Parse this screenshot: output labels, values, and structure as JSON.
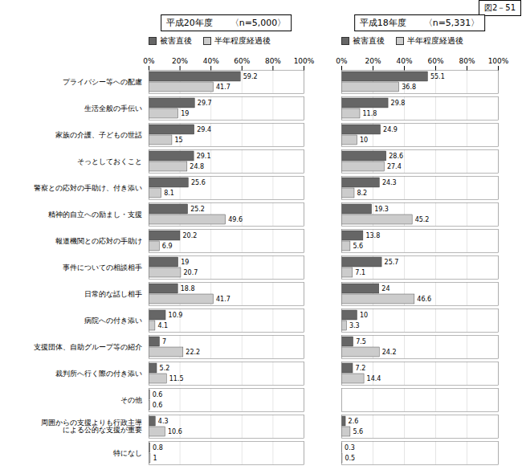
{
  "chart_data": [
    {
      "type": "bar",
      "orientation": "horizontal",
      "title": "平成20年度　　〈n=5,000〉",
      "annotations": [
        "図2－51"
      ],
      "categories": [
        "プライバシー等への配慮",
        "生活全般の手伝い",
        "家族の介護、子どもの世話",
        "そっとしておくこと",
        "警察との応対の手助け、付き添い",
        "精神的自立への励まし・支援",
        "報道機関との応対の手助け",
        "事件についての相談相手",
        "日常的な話し相手",
        "病院への付き添い",
        "支援団体、自助グループ等の紹介",
        "裁判所へ行く際の付き添い",
        "その他",
        "周囲からの支援よりも行政主導\nによる公的な支援が重要",
        "特になし"
      ],
      "series": [
        {
          "name": "被害直後",
          "color": "#666666",
          "values": [
            59.2,
            29.7,
            29.4,
            29.1,
            25.6,
            25.2,
            20.2,
            19.0,
            18.8,
            10.9,
            7.0,
            5.2,
            0.6,
            4.3,
            0.8
          ]
        },
        {
          "name": "半年程度経過後",
          "color": "#cccccc",
          "values": [
            41.7,
            19.0,
            15.0,
            24.8,
            8.1,
            49.6,
            6.9,
            20.7,
            41.7,
            4.1,
            22.2,
            11.5,
            0.6,
            10.6,
            1.0
          ]
        }
      ],
      "xlim": [
        0,
        100
      ],
      "xticks": [
        {
          "value": 0,
          "label": "0%"
        },
        {
          "value": 20,
          "label": "20%"
        },
        {
          "value": 40,
          "label": "40%"
        },
        {
          "value": 60,
          "label": "60%"
        },
        {
          "value": 80,
          "label": "80%"
        },
        {
          "value": 100,
          "label": "100%"
        }
      ],
      "grid": true,
      "legend": "top left",
      "data_labels": true
    },
    {
      "type": "bar",
      "orientation": "horizontal",
      "title": "平成18年度　　〈n=5,331〉",
      "categories": [
        "プライバシー等への配慮",
        "生活全般の手伝い",
        "家族の介護、子どもの世話",
        "そっとしておくこと",
        "警察との応対の手助け、付き添い",
        "精神的自立への励まし・支援",
        "報道機関との応対の手助け",
        "事件についての相談相手",
        "日常的な話し相手",
        "病院への付き添い",
        "支援団体、自助グループ等の紹介",
        "裁判所へ行く際の付き添い",
        "その他",
        "周囲からの支援よりも行政主導\nによる公的な支援が重要",
        "特になし"
      ],
      "series": [
        {
          "name": "被害直後",
          "color": "#666666",
          "values": [
            55.1,
            29.8,
            24.9,
            28.6,
            24.3,
            19.3,
            13.8,
            25.7,
            24.0,
            10.0,
            7.5,
            7.2,
            0.0,
            2.6,
            0.3
          ]
        },
        {
          "name": "半年程度経過後",
          "color": "#cccccc",
          "values": [
            36.8,
            11.8,
            10.0,
            27.4,
            8.2,
            45.2,
            5.6,
            7.1,
            46.6,
            3.3,
            24.2,
            14.4,
            0.0,
            5.6,
            0.5
          ]
        }
      ],
      "xlim": [
        0,
        100
      ],
      "xticks": [
        {
          "value": 0,
          "label": "0%"
        },
        {
          "value": 20,
          "label": "20%"
        },
        {
          "value": 40,
          "label": "40%"
        },
        {
          "value": 60,
          "label": "60%"
        },
        {
          "value": 80,
          "label": "80%"
        },
        {
          "value": 100,
          "label": "100%"
        }
      ],
      "grid": true,
      "legend": "top left",
      "data_labels": true,
      "tick_labels": "x"
    }
  ]
}
